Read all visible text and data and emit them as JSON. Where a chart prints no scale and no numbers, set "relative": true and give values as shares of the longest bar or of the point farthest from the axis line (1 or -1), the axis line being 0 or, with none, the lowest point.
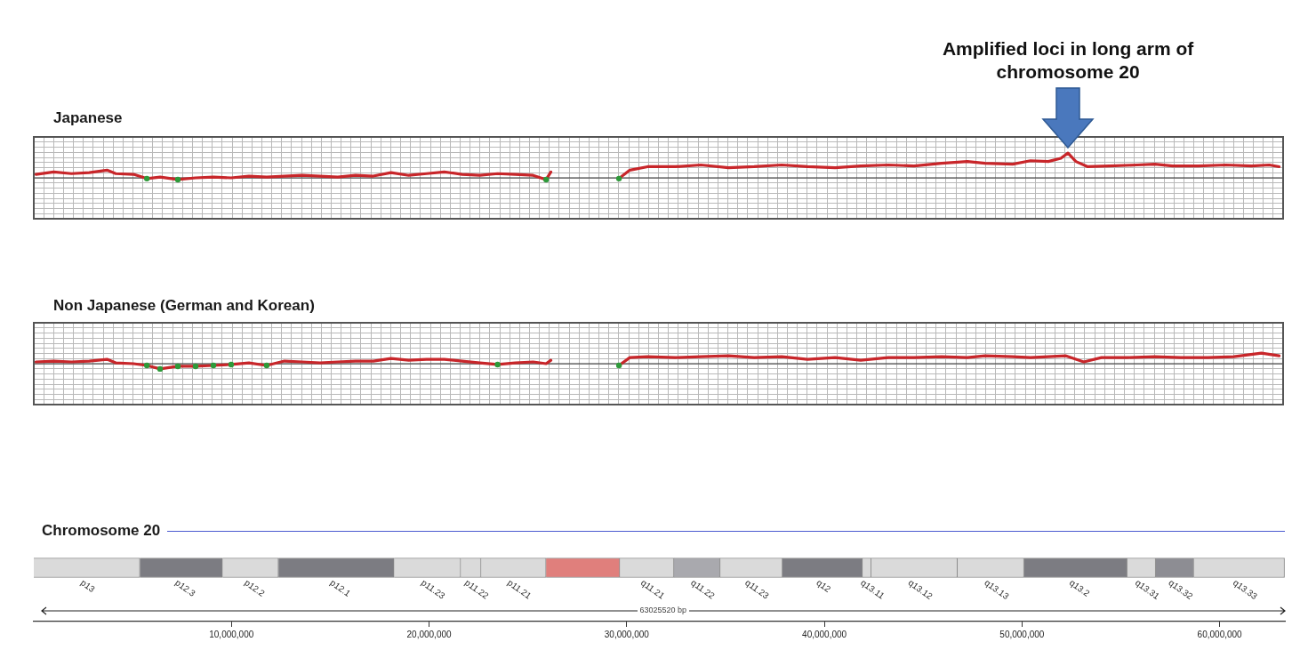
{
  "chart_data": [
    {
      "type": "line",
      "title": "Japanese",
      "relative": true,
      "grid": true,
      "tick_labels": false,
      "xlim": [
        0,
        63300000
      ],
      "x": [
        110000,
        1010000,
        1910000,
        2810000,
        3710000,
        4150000,
        5050000,
        5730000,
        6400000,
        7300000,
        8200000,
        9100000,
        10000000,
        10900000,
        11800000,
        12700000,
        13600000,
        14500000,
        15400000,
        16300000,
        17200000,
        18100000,
        19000000,
        19900000,
        20800000,
        21700000,
        22600000,
        23500000,
        24400000,
        25300000,
        25960000,
        26200000,
        28000000,
        29650000,
        30200000,
        31100000,
        32500000,
        33800000,
        35200000,
        36500000,
        37900000,
        39200000,
        40600000,
        41900000,
        43300000,
        44600000,
        46000000,
        47300000,
        48200000,
        49600000,
        50500000,
        51400000,
        52040000,
        52400000,
        52800000,
        53400000,
        54500000,
        55900000,
        56800000,
        57700000,
        59000000,
        60400000,
        61700000,
        62600000,
        63100000
      ],
      "series": [
        {
          "color": "#c8262a",
          "values": [
            0.14,
            0.24,
            0.17,
            0.21,
            0.31,
            0.17,
            0.14,
            -0.03,
            0.03,
            -0.07,
            0,
            0.03,
            0,
            0.07,
            0.03,
            0.07,
            0.1,
            0.07,
            0.03,
            0.1,
            0.07,
            0.21,
            0.1,
            0.17,
            0.24,
            0.14,
            0.1,
            0.17,
            0.14,
            0.1,
            -0.07,
            0.24,
            null,
            -0.03,
            0.31,
            0.45,
            0.45,
            0.52,
            0.41,
            0.45,
            0.52,
            0.45,
            0.41,
            0.48,
            0.52,
            0.48,
            0.59,
            0.66,
            0.59,
            0.55,
            0.69,
            0.66,
            0.79,
            1,
            0.66,
            0.45,
            0.48,
            0.52,
            0.55,
            0.48,
            0.48,
            0.52,
            0.48,
            0.52,
            0.45
          ]
        },
        {
          "type": "scatter",
          "marker": "circle",
          "color": "#2e9a3a",
          "x": [
            5730000,
            7300000,
            25960000,
            29650000
          ],
          "values": [
            -0.03,
            -0.07,
            -0.07,
            -0.03
          ]
        }
      ],
      "annotations": [
        "Amplified loci in long arm of chromosome 20"
      ]
    },
    {
      "type": "line",
      "title": "Non Japanese (German and Korean)",
      "relative": true,
      "grid": true,
      "tick_labels": false,
      "xlim": [
        0,
        63300000
      ],
      "x": [
        110000,
        1010000,
        1910000,
        2810000,
        3710000,
        4150000,
        5050000,
        5730000,
        6400000,
        7300000,
        8200000,
        9100000,
        10000000,
        10900000,
        11800000,
        12700000,
        13600000,
        14500000,
        15400000,
        16300000,
        17200000,
        18100000,
        19000000,
        19900000,
        20800000,
        21700000,
        22600000,
        23500000,
        24400000,
        25300000,
        25960000,
        26200000,
        28000000,
        29650000,
        30200000,
        31100000,
        32500000,
        33800000,
        35200000,
        36500000,
        37900000,
        39200000,
        40600000,
        41900000,
        43300000,
        44600000,
        46000000,
        47300000,
        48200000,
        49600000,
        50500000,
        51400000,
        52300000,
        53200000,
        54100000,
        55400000,
        56800000,
        58100000,
        59500000,
        60800000,
        62200000,
        63100000
      ],
      "series": [
        {
          "color": "#c8262a",
          "values": [
            0.17,
            0.25,
            0.17,
            0.25,
            0.42,
            0.08,
            0,
            -0.17,
            -0.5,
            -0.25,
            -0.25,
            -0.17,
            -0.08,
            0.08,
            -0.17,
            0.25,
            0.17,
            0.08,
            0.17,
            0.25,
            0.25,
            0.5,
            0.33,
            0.42,
            0.42,
            0.25,
            0.08,
            -0.08,
            0.08,
            0.17,
            0,
            0.33,
            null,
            -0.17,
            0.58,
            0.67,
            0.58,
            0.67,
            0.75,
            0.58,
            0.67,
            0.42,
            0.58,
            0.33,
            0.58,
            0.58,
            0.67,
            0.58,
            0.75,
            0.67,
            0.58,
            0.67,
            0.75,
            0.17,
            0.58,
            0.58,
            0.67,
            0.58,
            0.58,
            0.67,
            1,
            0.75
          ]
        },
        {
          "type": "scatter",
          "marker": "circle",
          "color": "#2e9a3a",
          "x": [
            5730000,
            6400000,
            7300000,
            8200000,
            9100000,
            10000000,
            11800000,
            23500000,
            29650000
          ],
          "values": [
            -0.17,
            -0.5,
            -0.25,
            -0.25,
            -0.17,
            -0.08,
            -0.17,
            -0.08,
            -0.17
          ]
        }
      ]
    },
    {
      "type": "bar",
      "orientation": "horizontal",
      "stacked": true,
      "title": "Chromosome 20",
      "tick_labels": "x",
      "categories": [
        null
      ],
      "xlim": [
        0,
        63300000
      ],
      "xticks": [
        {
          "value": 10000000,
          "label": "10,000,000"
        },
        {
          "value": 20000000,
          "label": "20,000,000"
        },
        {
          "value": 30000000,
          "label": "30,000,000"
        },
        {
          "value": 40000000,
          "label": "40,000,000"
        },
        {
          "value": 50000000,
          "label": "50,000,000"
        },
        {
          "value": 60000000,
          "label": "60,000,000"
        }
      ],
      "series": [
        {
          "name": "p13",
          "color": "#dadada",
          "values": [
            5370000
          ]
        },
        {
          "name": "p12.3",
          "color": "#7c7c82",
          "values": [
            4180000
          ]
        },
        {
          "name": "p12.2",
          "color": "#dadada",
          "values": [
            2830000
          ]
        },
        {
          "name": "p12.1",
          "color": "#7c7c82",
          "values": [
            5850000
          ]
        },
        {
          "name": "p11.23",
          "color": "#dadada",
          "values": [
            3370000
          ]
        },
        {
          "name": "p11.22",
          "color": "#dadada",
          "values": [
            1030000
          ]
        },
        {
          "name": "p11.21",
          "color": "#dadada",
          "values": [
            3290000
          ]
        },
        {
          "color": "#e07f7c",
          "values": [
            3730000
          ]
        },
        {
          "name": "q11.21",
          "color": "#dadada",
          "values": [
            2740000
          ]
        },
        {
          "name": "q11.22",
          "color": "#a9a9ae",
          "values": [
            2340000
          ]
        },
        {
          "name": "q11.23",
          "color": "#dadada",
          "values": [
            3150000
          ]
        },
        {
          "name": "q12",
          "color": "#7c7c82",
          "values": [
            4050000
          ]
        },
        {
          "name": "q13.11",
          "color": "#dadada",
          "values": [
            440000
          ]
        },
        {
          "name": "q13.12",
          "color": "#dadada",
          "values": [
            4360000
          ]
        },
        {
          "name": "q13.13",
          "color": "#dadada",
          "values": [
            3370000
          ]
        },
        {
          "name": "q13.2",
          "color": "#7c7c82",
          "values": [
            5220000
          ]
        },
        {
          "name": "q13.31",
          "color": "#dadada",
          "values": [
            1440000
          ]
        },
        {
          "name": "q13.32",
          "color": "#8d8d93",
          "values": [
            1930000
          ]
        },
        {
          "name": "q13.33",
          "color": "#dadada",
          "values": [
            4590000
          ]
        }
      ],
      "annotations": [
        "63025520 bp"
      ]
    }
  ]
}
